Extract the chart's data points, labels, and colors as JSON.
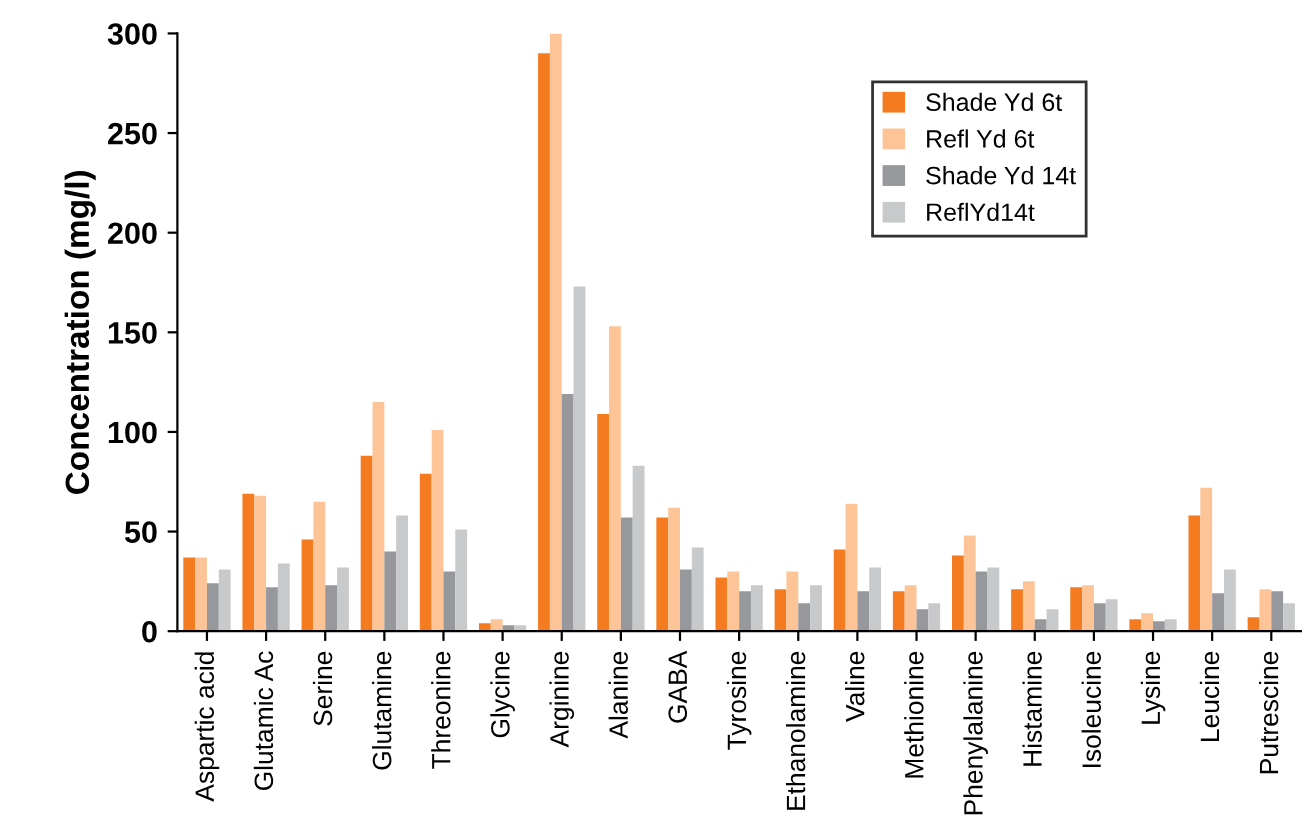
{
  "chart_data": {
    "type": "bar",
    "ylabel": "Concentration (mg/l)",
    "categories": [
      "Aspartic acid",
      "Glutamic Ac",
      "Serine",
      "Glutamine",
      "Threonine",
      "Glycine",
      "Arginine",
      "Alanine",
      "GABA",
      "Tyrosine",
      "Ethanolamine",
      "Valine",
      "Methionine",
      "Phenylalanine",
      "Histamine",
      "Isoleucine",
      "Lysine",
      "Leucine",
      "Putrescine"
    ],
    "series": [
      {
        "name": "Shade Yd 6t",
        "color": "#f47b20",
        "values": [
          37,
          69,
          46,
          88,
          79,
          4,
          290,
          109,
          57,
          27,
          21,
          41,
          20,
          38,
          21,
          22,
          6,
          58,
          7
        ]
      },
      {
        "name": "Refl Yd 6t",
        "color": "#fdc597",
        "values": [
          37,
          68,
          65,
          115,
          101,
          6,
          300,
          153,
          62,
          30,
          30,
          64,
          23,
          48,
          25,
          23,
          9,
          72,
          21
        ]
      },
      {
        "name": "Shade Yd 14t",
        "color": "#97989b",
        "values": [
          24,
          22,
          23,
          40,
          30,
          3,
          119,
          57,
          31,
          20,
          14,
          20,
          11,
          30,
          6,
          14,
          5,
          19,
          20
        ]
      },
      {
        "name": "ReflYd14t",
        "color": "#c8c9cb",
        "values": [
          31,
          34,
          32,
          58,
          51,
          3,
          173,
          83,
          42,
          23,
          23,
          32,
          14,
          32,
          11,
          16,
          6,
          31,
          14
        ]
      }
    ],
    "ylim": [
      0,
      300
    ],
    "yticks": [
      0,
      50,
      100,
      150,
      200,
      250,
      300
    ],
    "grid": false,
    "legend": "top right"
  }
}
